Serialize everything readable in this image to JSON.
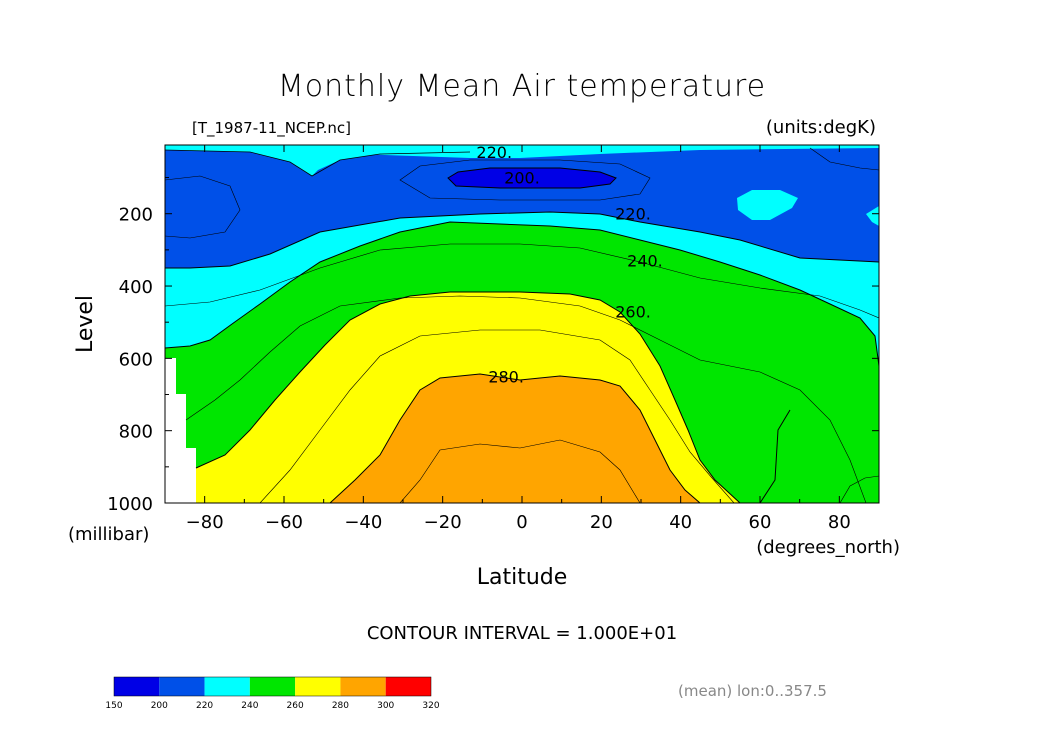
{
  "chart_data": {
    "type": "heatmap",
    "title": "Monthly Mean Air temperature",
    "file_label": "[T_1987-11_NCEP.nc]",
    "units_label": "(units:degK)",
    "xlabel": "Latitude",
    "xunits": "(degrees_north)",
    "ylabel": "Level",
    "yunits": "(millibar)",
    "xlim": [
      -90,
      90
    ],
    "ylim": [
      1000,
      10
    ],
    "x_ticks": [
      -80,
      -60,
      -40,
      -20,
      0,
      20,
      40,
      60,
      80
    ],
    "y_ticks": [
      200,
      400,
      600,
      800,
      1000
    ],
    "contour_interval_text": "CONTOUR INTERVAL = 1.000E+01",
    "footer_note": "(mean) lon:0..357.5",
    "contour_labels": [
      {
        "text": "220.",
        "lat": -7,
        "lev": 30
      },
      {
        "text": "200.",
        "lat": 0,
        "lev": 100
      },
      {
        "text": "220.",
        "lat": 28,
        "lev": 200
      },
      {
        "text": "240.",
        "lat": 31,
        "lev": 330
      },
      {
        "text": "260.",
        "lat": 28,
        "lev": 470
      },
      {
        "text": "280.",
        "lat": -4,
        "lev": 650
      }
    ],
    "levels": [
      150,
      200,
      220,
      240,
      260,
      280,
      300,
      320
    ],
    "level_colors": [
      "#0000e6",
      "#0050e8",
      "#00ffff",
      "#00e600",
      "#ffff00",
      "#ffa500",
      "#ff0000"
    ]
  }
}
